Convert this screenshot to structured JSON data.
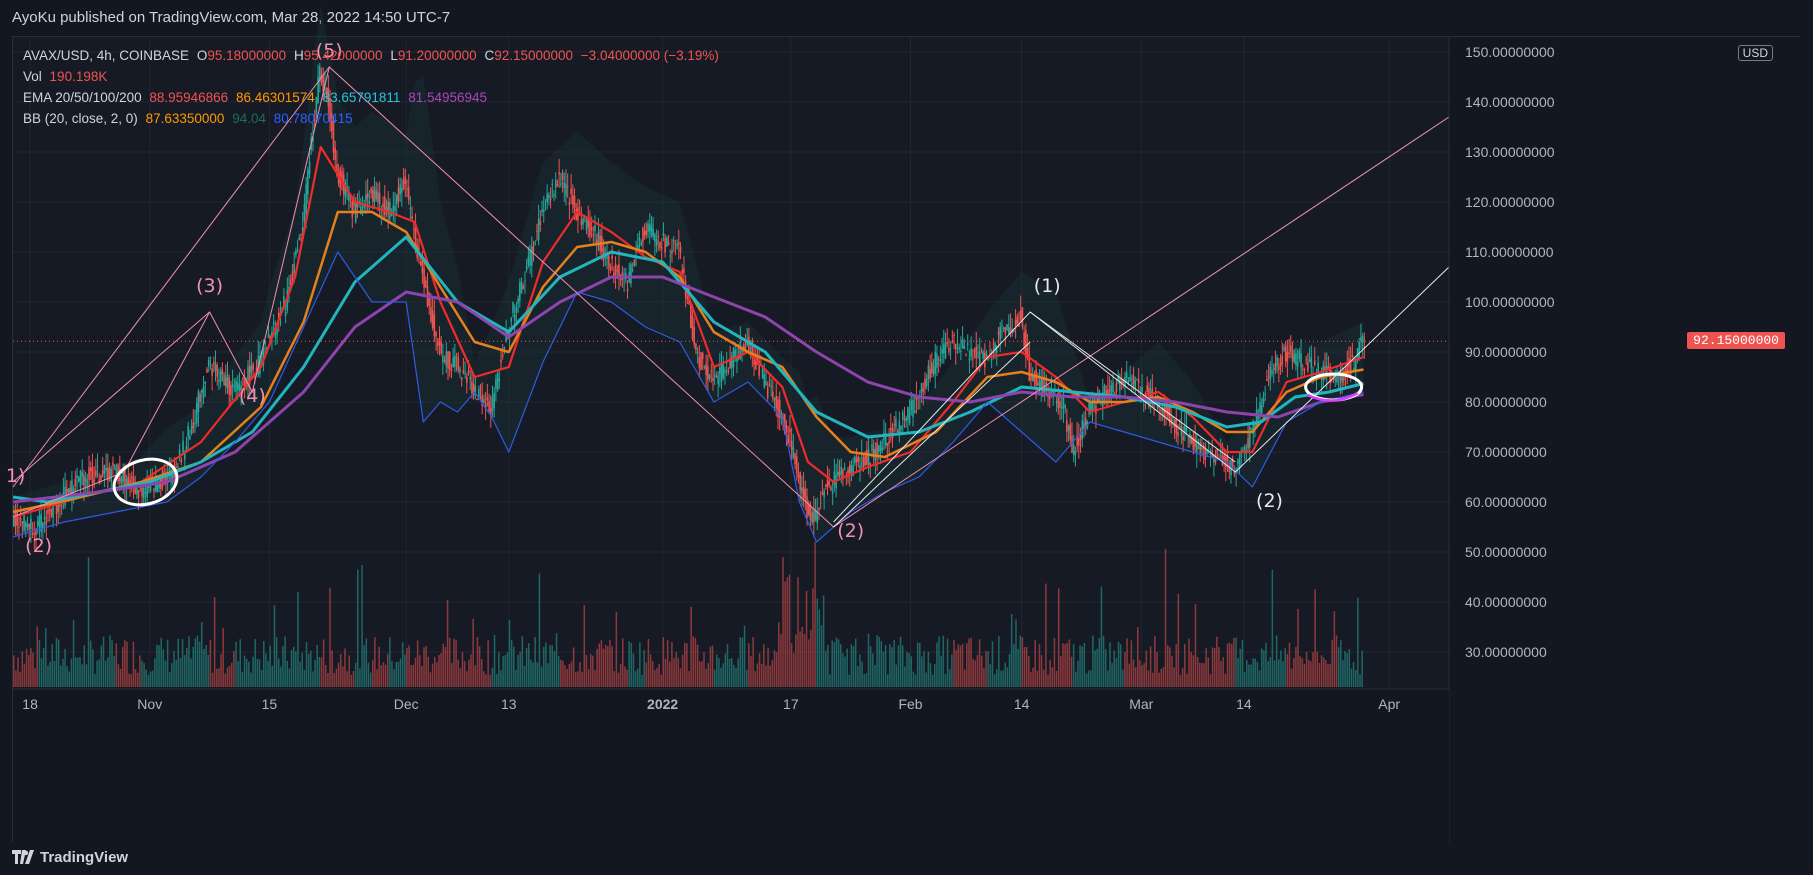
{
  "publisher": "AyoKu published on TradingView.com, Mar 28, 2022 14:50 UTC-7",
  "legend": {
    "symbol": "AVAX/USD, 4h, COINBASE",
    "o_label": "O",
    "open": "95.18000000",
    "h_label": "H",
    "high": "95.42000000",
    "l_label": "L",
    "low": "91.20000000",
    "c_label": "C",
    "close": "92.15000000",
    "change": "−3.04000000 (−3.19%)",
    "vol_label": "Vol",
    "vol": "190.198K",
    "ema_label": "EMA 20/50/100/200",
    "ema20": "88.95946866",
    "ema50": "86.46301574",
    "ema100": "83.65791811",
    "ema200": "81.54956945",
    "bb_label": "BB (20, close, 2, 0)",
    "bb_basis": "87.63350000",
    "bb_upper": "94.04",
    "bb_lower": "80.78070415"
  },
  "currency_badge": "USD",
  "last_price_label": "92.15000000",
  "footer_brand": "TradingView",
  "colors": {
    "up": "#26a69a",
    "down": "#ef5350",
    "ema20": "#ef2b2b",
    "ema50": "#e6801e",
    "ema100": "#22b5bd",
    "ema200": "#8e44ad",
    "bb": "#2d5be3",
    "wave_pink": "#f48fb1",
    "wave_white": "#e8e8e8"
  },
  "chart_data": {
    "type": "line",
    "title": "AVAX/USD, 4h, COINBASE",
    "ylabel": "USD",
    "ylim": [
      23,
      153
    ],
    "y_ticks": [
      {
        "v": 150,
        "label": "150.00000000"
      },
      {
        "v": 140,
        "label": "140.00000000"
      },
      {
        "v": 130,
        "label": "130.00000000"
      },
      {
        "v": 120,
        "label": "120.00000000"
      },
      {
        "v": 110,
        "label": "110.00000000"
      },
      {
        "v": 100,
        "label": "100.00000000"
      },
      {
        "v": 90,
        "label": "90.00000000"
      },
      {
        "v": 80,
        "label": "80.00000000"
      },
      {
        "v": 70,
        "label": "70.00000000"
      },
      {
        "v": 60,
        "label": "60.00000000"
      },
      {
        "v": 50,
        "label": "50.00000000"
      },
      {
        "v": 40,
        "label": "40.00000000"
      },
      {
        "v": 30,
        "label": "30.00000000"
      }
    ],
    "xlim": [
      0,
      168
    ],
    "x_ticks": [
      {
        "t": 2,
        "label": "18"
      },
      {
        "t": 16,
        "label": "Nov"
      },
      {
        "t": 30,
        "label": "15"
      },
      {
        "t": 46,
        "label": "Dec"
      },
      {
        "t": 58,
        "label": "13"
      },
      {
        "t": 76,
        "label": "2022"
      },
      {
        "t": 91,
        "label": "17"
      },
      {
        "t": 105,
        "label": "Feb"
      },
      {
        "t": 118,
        "label": "14"
      },
      {
        "t": 132,
        "label": "Mar"
      },
      {
        "t": 144,
        "label": "14"
      },
      {
        "t": 161,
        "label": "Apr"
      }
    ],
    "last_price": 92.15,
    "price_series": {
      "name": "AVAX/USD close",
      "t": [
        0,
        3,
        8,
        12,
        15,
        19,
        21,
        23,
        26,
        29,
        32,
        34,
        35,
        36,
        37,
        38,
        40,
        42,
        44,
        46,
        48,
        50,
        52,
        54,
        56,
        58,
        60,
        62,
        64,
        66,
        68,
        70,
        72,
        74,
        76,
        78,
        80,
        82,
        84,
        86,
        88,
        90,
        91,
        93,
        94,
        95,
        97,
        99,
        101,
        103,
        105,
        108,
        110,
        112,
        114,
        116,
        118,
        119,
        121,
        123,
        124,
        126,
        128,
        130,
        132,
        134,
        136,
        138,
        140,
        142,
        143,
        145,
        147,
        149,
        151,
        153,
        155,
        157,
        158
      ],
      "values": [
        57,
        55,
        65,
        66,
        62,
        66,
        75,
        88,
        82,
        88,
        100,
        115,
        132,
        146,
        140,
        126,
        118,
        122,
        118,
        124,
        105,
        90,
        87,
        83,
        78,
        95,
        105,
        118,
        125,
        118,
        114,
        108,
        104,
        115,
        112,
        110,
        90,
        84,
        88,
        92,
        84,
        77,
        72,
        58,
        57,
        62,
        66,
        68,
        70,
        74,
        78,
        88,
        92,
        90,
        88,
        95,
        97,
        86,
        82,
        80,
        70,
        78,
        82,
        85,
        82,
        80,
        76,
        72,
        70,
        68,
        66,
        74,
        85,
        90,
        88,
        86,
        85,
        88,
        92
      ]
    },
    "series": [
      {
        "name": "EMA 20",
        "t": [
          0,
          8,
          15,
          22,
          29,
          33,
          36,
          40,
          44,
          47,
          50,
          54,
          58,
          62,
          66,
          70,
          74,
          78,
          82,
          86,
          90,
          93,
          96,
          100,
          105,
          110,
          114,
          118,
          122,
          126,
          130,
          134,
          138,
          142,
          145,
          149,
          153,
          158
        ],
        "values": [
          57,
          61,
          64,
          72,
          87,
          105,
          131,
          120,
          118,
          116,
          100,
          85,
          87,
          108,
          118,
          114,
          109,
          106,
          87,
          90,
          83,
          68,
          64,
          67,
          70,
          80,
          89,
          90,
          85,
          78,
          80,
          82,
          77,
          70,
          70,
          84,
          86,
          89
        ]
      },
      {
        "name": "EMA 50",
        "t": [
          0,
          8,
          15,
          22,
          29,
          34,
          38,
          42,
          46,
          50,
          54,
          58,
          62,
          66,
          70,
          74,
          78,
          82,
          86,
          90,
          94,
          98,
          102,
          108,
          114,
          118,
          122,
          126,
          130,
          134,
          138,
          142,
          145,
          149,
          153,
          158
        ],
        "values": [
          58,
          61,
          64,
          68,
          79,
          96,
          118,
          118,
          114,
          103,
          92,
          90,
          103,
          111,
          112,
          110,
          105,
          94,
          90,
          87,
          77,
          70,
          69,
          74,
          85,
          86,
          84,
          80,
          80,
          81,
          78,
          74,
          74,
          82,
          85,
          86.5
        ]
      },
      {
        "name": "EMA 100",
        "t": [
          0,
          4,
          10,
          16,
          22,
          28,
          34,
          40,
          46,
          52,
          58,
          64,
          70,
          76,
          82,
          88,
          94,
          100,
          106,
          112,
          118,
          124,
          130,
          136,
          142,
          146,
          150,
          154,
          158
        ],
        "values": [
          61,
          60,
          62,
          64,
          68,
          74,
          87,
          104,
          113,
          100,
          94,
          105,
          110,
          108,
          96,
          90,
          78,
          73,
          74,
          78,
          83,
          82,
          81,
          79,
          75,
          76,
          81,
          82,
          83.7
        ]
      },
      {
        "name": "EMA 200",
        "t": [
          0,
          10,
          18,
          26,
          34,
          40,
          46,
          52,
          58,
          64,
          70,
          76,
          82,
          88,
          94,
          100,
          106,
          112,
          118,
          124,
          130,
          136,
          142,
          148,
          153,
          158
        ],
        "values": [
          60,
          62,
          64,
          70,
          82,
          95,
          102,
          100,
          93,
          100,
          105,
          105,
          101,
          97,
          90,
          84,
          81,
          80,
          82,
          81,
          81,
          80,
          78,
          77,
          80,
          81.5
        ]
      },
      {
        "name": "BB lower",
        "t": [
          0,
          6,
          12,
          18,
          22,
          26,
          30,
          34,
          38,
          42,
          46,
          48,
          50,
          52,
          54,
          56,
          58,
          62,
          66,
          70,
          74,
          78,
          82,
          86,
          90,
          92,
          94,
          98,
          102,
          106,
          110,
          114,
          118,
          122,
          126,
          130,
          134,
          138,
          142,
          145,
          149,
          153,
          158
        ],
        "values": [
          53,
          56,
          58,
          60,
          65,
          72,
          80,
          95,
          110,
          100,
          100,
          76,
          80,
          78,
          82,
          77,
          70,
          88,
          102,
          100,
          95,
          92,
          80,
          84,
          77,
          60,
          52,
          58,
          62,
          65,
          72,
          80,
          74,
          68,
          76,
          74,
          72,
          70,
          68,
          63,
          76,
          80,
          82
        ]
      }
    ],
    "annotations": [
      {
        "text": "1)",
        "t": 0.3,
        "v": 64,
        "color": "pink"
      },
      {
        "text": "(2)",
        "t": 3,
        "v": 50,
        "color": "pink"
      },
      {
        "text": "(3)",
        "t": 23,
        "v": 102,
        "color": "pink"
      },
      {
        "text": "(4)",
        "t": 28,
        "v": 80,
        "color": "pink"
      },
      {
        "text": "(5)",
        "t": 37,
        "v": 149,
        "color": "pink"
      },
      {
        "text": "(2)",
        "t": 98,
        "v": 53,
        "color": "pink"
      },
      {
        "text": "(1)",
        "t": 121,
        "v": 102,
        "color": "white"
      },
      {
        "text": "(2)",
        "t": 147,
        "v": 59,
        "color": "white"
      }
    ]
  }
}
